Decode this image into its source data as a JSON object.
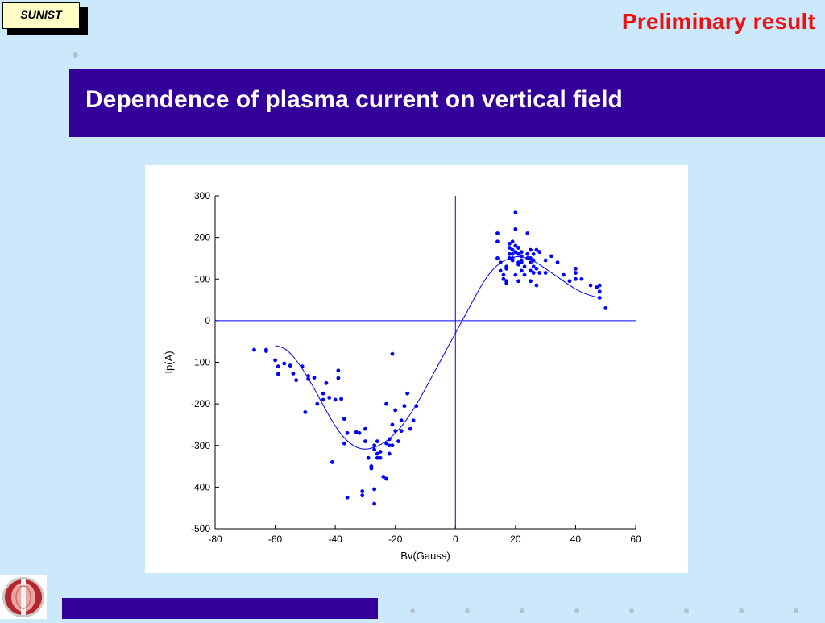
{
  "badge": {
    "label": "SUNIST"
  },
  "header": {
    "status": "Preliminary result"
  },
  "slide": {
    "title": "Dependence of plasma current on vertical field"
  },
  "colors": {
    "title_bar": "#330099",
    "status": "#ee1111",
    "data": "#0000ff"
  },
  "chart_data": {
    "type": "scatter",
    "title": "",
    "xlabel": "Bv(Gauss)",
    "ylabel": "Ip(A)",
    "xlim": [
      -80,
      60
    ],
    "ylim": [
      -500,
      300
    ],
    "xticks": [
      -80,
      -60,
      -40,
      -20,
      0,
      20,
      40,
      60
    ],
    "yticks": [
      300,
      200,
      100,
      0,
      -100,
      -200,
      -300,
      -400,
      -500
    ],
    "grid": false,
    "reference_lines": {
      "x": 0,
      "y": 0
    },
    "series": [
      {
        "type": "scatter",
        "x": [
          -67,
          -63,
          -63,
          -60,
          -59,
          -59,
          -57,
          -55,
          -54,
          -53,
          -51,
          -50,
          -49,
          -49,
          -47,
          -46,
          -44,
          -44,
          -43,
          -42,
          -41,
          -40,
          -39,
          -39,
          -38,
          -37,
          -37,
          -36,
          -36,
          -33,
          -32,
          -31,
          -31,
          -30,
          -30,
          -29,
          -28,
          -28,
          -27,
          -27,
          -27,
          -27,
          -26,
          -26,
          -26,
          -25,
          -25,
          -24,
          -23,
          -23,
          -23,
          -22,
          -22,
          -22,
          -21,
          -21,
          -21,
          -20,
          -20,
          -19,
          -18,
          -18,
          -17,
          -16,
          -15,
          -14,
          -13,
          14,
          14,
          14,
          15,
          15,
          16,
          16,
          17,
          17,
          17,
          17,
          18,
          18,
          18,
          18,
          19,
          19,
          19,
          19,
          19,
          20,
          20,
          20,
          20,
          20,
          21,
          21,
          21,
          21,
          21,
          22,
          22,
          22,
          22,
          22,
          23,
          23,
          24,
          24,
          24,
          25,
          25,
          25,
          25,
          25,
          26,
          26,
          26,
          26,
          27,
          27,
          27,
          28,
          28,
          30,
          30,
          32,
          34,
          36,
          38,
          40,
          40,
          40,
          42,
          45,
          47,
          48,
          48,
          48,
          50
        ],
        "y": [
          -70,
          -70,
          -73,
          -95,
          -110,
          -128,
          -103,
          -108,
          -127,
          -143,
          -110,
          -220,
          -133,
          -140,
          -137,
          -200,
          -175,
          -190,
          -150,
          -185,
          -340,
          -190,
          -120,
          -138,
          -188,
          -236,
          -295,
          -425,
          -270,
          -268,
          -270,
          -410,
          -420,
          -260,
          -290,
          -330,
          -355,
          -350,
          -405,
          -440,
          -310,
          -300,
          -330,
          -320,
          -290,
          -315,
          -330,
          -375,
          -200,
          -380,
          -295,
          -300,
          -320,
          -285,
          -80,
          -300,
          -250,
          -265,
          -215,
          -290,
          -265,
          -240,
          -205,
          -175,
          -260,
          -240,
          -205,
          210,
          190,
          150,
          140,
          120,
          110,
          100,
          95,
          125,
          90,
          130,
          150,
          160,
          175,
          185,
          170,
          145,
          160,
          190,
          150,
          260,
          220,
          180,
          165,
          110,
          175,
          160,
          140,
          95,
          135,
          155,
          120,
          145,
          165,
          140,
          110,
          130,
          160,
          210,
          150,
          170,
          120,
          140,
          95,
          150,
          130,
          115,
          160,
          145,
          170,
          125,
          85,
          165,
          115,
          145,
          115,
          155,
          140,
          110,
          95,
          115,
          100,
          125,
          100,
          85,
          80,
          85,
          55,
          70,
          30
        ]
      },
      {
        "type": "line",
        "name": "",
        "x": [
          -60,
          -57,
          -54,
          -51,
          -48,
          -45,
          -42,
          -39,
          -36,
          -33,
          -30,
          -27,
          -24,
          -21,
          -18,
          -15,
          -12,
          -9,
          -6,
          -3,
          0,
          3,
          6,
          9,
          12,
          15,
          18,
          21,
          24,
          27,
          30,
          33,
          36,
          39,
          42,
          45,
          48
        ],
        "y": [
          -60,
          -65,
          -85,
          -115,
          -150,
          -190,
          -230,
          -265,
          -290,
          -305,
          -310,
          -305,
          -295,
          -278,
          -255,
          -225,
          -190,
          -150,
          -110,
          -70,
          -30,
          10,
          50,
          90,
          120,
          140,
          150,
          155,
          150,
          140,
          125,
          110,
          95,
          80,
          68,
          60,
          55
        ]
      }
    ]
  }
}
